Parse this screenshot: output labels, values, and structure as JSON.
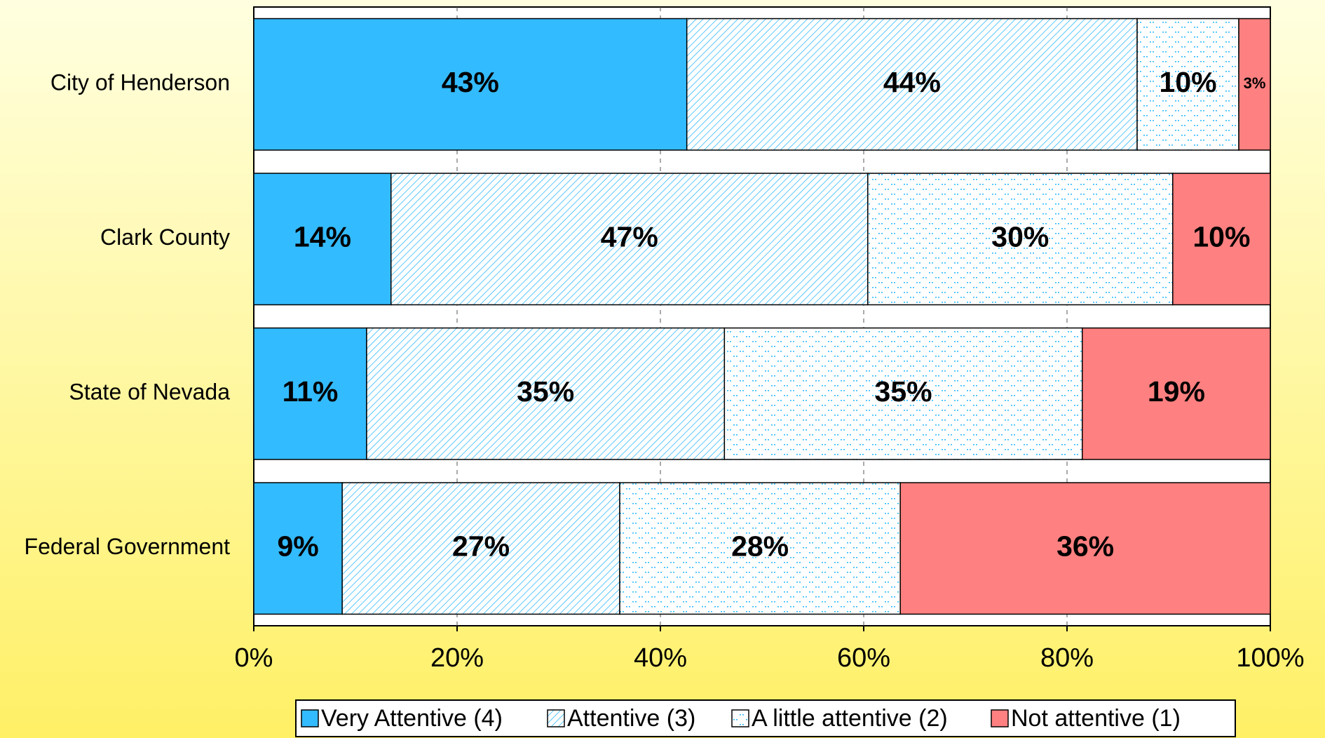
{
  "chart_data": {
    "type": "stacked-bar-horizontal",
    "categories": [
      "City of Henderson",
      "Clark County",
      "State of Nevada",
      "Federal Government"
    ],
    "series": [
      {
        "name": "Very Attentive (4)",
        "color": "#33bbff",
        "fill": "solid",
        "values": [
          42.6,
          13.5,
          11.1,
          8.7
        ],
        "value_labels": [
          "43%",
          "14%",
          "11%",
          "9%"
        ]
      },
      {
        "name": "Attentive (3)",
        "color": "#33bbff",
        "fill": "hatch",
        "values": [
          44.3,
          46.9,
          35.2,
          27.3
        ],
        "value_labels": [
          "44%",
          "47%",
          "35%",
          "27%"
        ]
      },
      {
        "name": "A little attentive (2)",
        "color": "#33bbff",
        "fill": "dots",
        "values": [
          10.0,
          30.0,
          35.2,
          27.6
        ],
        "value_labels": [
          "10%",
          "30%",
          "35%",
          "28%"
        ]
      },
      {
        "name": "Not attentive (1)",
        "color": "#ff8080",
        "fill": "solid",
        "values": [
          3.1,
          9.6,
          18.5,
          36.4
        ],
        "value_labels": [
          "3%",
          "10%",
          "19%",
          "36%"
        ]
      }
    ],
    "xlim": [
      0,
      100
    ],
    "xticks": [
      {
        "value": 0,
        "label": "0%"
      },
      {
        "value": 20,
        "label": "20%"
      },
      {
        "value": 40,
        "label": "40%"
      },
      {
        "value": 60,
        "label": "60%"
      },
      {
        "value": 80,
        "label": "80%"
      },
      {
        "value": 100,
        "label": "100%"
      }
    ],
    "grid": true,
    "legend": "bottom"
  }
}
